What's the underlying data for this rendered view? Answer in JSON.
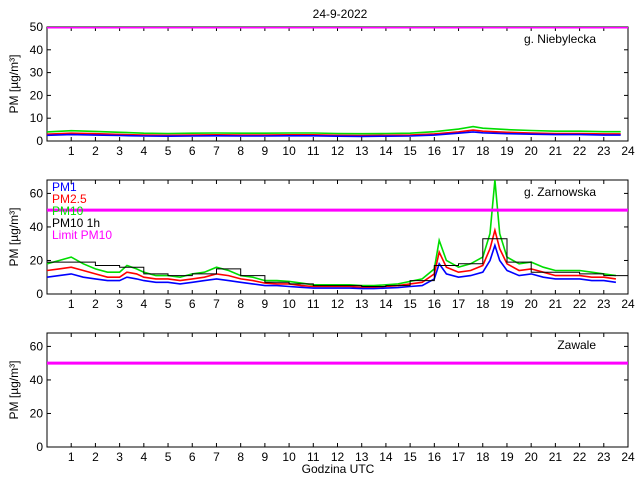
{
  "title": "24-9-2022",
  "xlabel": "Godzina UTC",
  "ylabel": "PM [µg/m³]",
  "colors": {
    "pm1": "#0000ff",
    "pm25": "#ff0000",
    "pm10": "#00dd00",
    "pm10_1h": "#000000",
    "limit": "#ff00ff"
  },
  "legend": [
    {
      "key": "pm1",
      "label": "PM1"
    },
    {
      "key": "pm25",
      "label": "PM2.5"
    },
    {
      "key": "pm10",
      "label": "PM10"
    },
    {
      "key": "pm10_1h",
      "label": "PM10 1h"
    },
    {
      "key": "limit",
      "label": "Limit PM10"
    }
  ],
  "chart_data": [
    {
      "type": "line",
      "station": "g. Niebylecka",
      "xlim": [
        0,
        24
      ],
      "ylim": [
        0,
        50
      ],
      "yticks": [
        0,
        10,
        20,
        30,
        40,
        50
      ],
      "xticks": [
        1,
        2,
        3,
        4,
        5,
        6,
        7,
        8,
        9,
        10,
        11,
        12,
        13,
        14,
        15,
        16,
        17,
        18,
        19,
        20,
        21,
        22,
        23,
        24
      ],
      "limit": 50,
      "series": [
        {
          "key": "pm1",
          "x": [
            0,
            1,
            2,
            3,
            4,
            5,
            6,
            7,
            8,
            9,
            10,
            11,
            12,
            13,
            14,
            15,
            16,
            17,
            17.6,
            18,
            19,
            20,
            21,
            22,
            23,
            23.7
          ],
          "y": [
            2.5,
            2.8,
            2.6,
            2.4,
            2.2,
            2.1,
            2.2,
            2.3,
            2.2,
            2.2,
            2.3,
            2.3,
            2.1,
            2.0,
            2.1,
            2.2,
            2.6,
            3.4,
            4.0,
            3.6,
            3.2,
            3.0,
            2.8,
            2.8,
            2.6,
            2.6
          ]
        },
        {
          "key": "pm25",
          "x": [
            0,
            1,
            2,
            3,
            4,
            5,
            6,
            7,
            8,
            9,
            10,
            11,
            12,
            13,
            14,
            15,
            16,
            17,
            17.6,
            18,
            19,
            20,
            21,
            22,
            23,
            23.7
          ],
          "y": [
            3.0,
            3.4,
            3.2,
            2.9,
            2.6,
            2.5,
            2.6,
            2.7,
            2.6,
            2.6,
            2.7,
            2.7,
            2.5,
            2.4,
            2.5,
            2.6,
            3.1,
            4.0,
            4.8,
            4.3,
            3.8,
            3.5,
            3.3,
            3.3,
            3.1,
            3.1
          ]
        },
        {
          "key": "pm10",
          "x": [
            0,
            1,
            2,
            3,
            4,
            5,
            6,
            7,
            8,
            9,
            10,
            11,
            12,
            13,
            14,
            15,
            16,
            17,
            17.6,
            18,
            19,
            20,
            21,
            22,
            23,
            23.7
          ],
          "y": [
            4.0,
            4.5,
            4.2,
            3.8,
            3.4,
            3.3,
            3.4,
            3.5,
            3.4,
            3.4,
            3.5,
            3.5,
            3.3,
            3.2,
            3.3,
            3.4,
            4.1,
            5.2,
            6.3,
            5.6,
            5.0,
            4.6,
            4.3,
            4.3,
            4.1,
            4.1
          ]
        }
      ],
      "hourly_pm10": []
    },
    {
      "type": "line",
      "station": "g. Zarnowska",
      "xlim": [
        0,
        24
      ],
      "ylim": [
        0,
        68
      ],
      "yticks": [
        0,
        20,
        40,
        60
      ],
      "xticks": [
        1,
        2,
        3,
        4,
        5,
        6,
        7,
        8,
        9,
        10,
        11,
        12,
        13,
        14,
        15,
        16,
        17,
        18,
        19,
        20,
        21,
        22,
        23,
        24
      ],
      "limit": 50,
      "series": [
        {
          "key": "pm1",
          "x": [
            0,
            0.5,
            1,
            1.5,
            2,
            2.5,
            3,
            3.3,
            3.7,
            4,
            4.5,
            5,
            5.5,
            6,
            6.5,
            7,
            7.5,
            8,
            8.5,
            9,
            9.5,
            10,
            10.5,
            11,
            11.5,
            12,
            12.5,
            13,
            13.5,
            14,
            14.5,
            15,
            15.5,
            16,
            16.2,
            16.5,
            17,
            17.5,
            18,
            18.3,
            18.5,
            18.7,
            19,
            19.5,
            20,
            20.5,
            21,
            21.5,
            22,
            22.5,
            23,
            23.5
          ],
          "y": [
            10,
            11,
            12,
            10,
            9,
            8,
            8,
            10,
            9,
            8,
            7,
            7,
            6,
            7,
            8,
            9,
            8,
            7,
            6,
            5,
            5,
            4.5,
            4,
            3.5,
            3.5,
            3.5,
            3.5,
            3.2,
            3.2,
            3.5,
            3.8,
            4.5,
            5,
            9,
            18,
            12,
            10,
            11,
            13,
            20,
            29,
            20,
            14,
            11,
            12,
            10,
            9,
            9,
            9,
            8,
            8,
            7
          ]
        },
        {
          "key": "pm25",
          "x": [
            0,
            0.5,
            1,
            1.5,
            2,
            2.5,
            3,
            3.3,
            3.7,
            4,
            4.5,
            5,
            5.5,
            6,
            6.5,
            7,
            7.5,
            8,
            8.5,
            9,
            9.5,
            10,
            10.5,
            11,
            11.5,
            12,
            12.5,
            13,
            13.5,
            14,
            14.5,
            15,
            15.5,
            16,
            16.2,
            16.5,
            17,
            17.5,
            18,
            18.3,
            18.5,
            18.7,
            19,
            19.5,
            20,
            20.5,
            21,
            21.5,
            22,
            22.5,
            23,
            23.5
          ],
          "y": [
            14,
            15,
            16,
            14,
            12,
            10,
            10,
            13,
            12,
            10,
            9,
            9,
            8,
            9,
            10,
            12,
            11,
            9,
            8,
            6.5,
            6,
            6,
            5,
            4.5,
            4.5,
            4.5,
            4.5,
            4,
            4,
            4.5,
            5,
            6,
            7,
            12,
            25,
            16,
            13,
            14,
            17,
            27,
            38,
            27,
            18,
            14,
            15,
            13,
            11,
            11,
            11,
            10,
            10,
            9
          ]
        },
        {
          "key": "pm10",
          "x": [
            0,
            0.5,
            1,
            1.5,
            2,
            2.5,
            3,
            3.3,
            3.7,
            4,
            4.5,
            5,
            5.5,
            6,
            6.5,
            7,
            7.5,
            8,
            8.5,
            9,
            9.5,
            10,
            10.5,
            11,
            11.5,
            12,
            12.5,
            13,
            13.5,
            14,
            14.5,
            15,
            15.5,
            16,
            16.2,
            16.5,
            17,
            17.5,
            18,
            18.3,
            18.5,
            18.6,
            18.7,
            19,
            19.5,
            20,
            20.5,
            21,
            21.5,
            22,
            22.5,
            23,
            23.5
          ],
          "y": [
            18,
            20,
            22,
            18,
            15,
            13,
            13,
            17,
            15,
            13,
            11,
            11,
            10,
            12,
            13,
            16,
            14,
            11,
            10,
            8,
            8,
            7.5,
            6.5,
            5.5,
            5.5,
            5.5,
            5.5,
            5,
            5,
            5.5,
            6,
            7.5,
            9,
            15,
            32,
            20,
            16,
            18,
            22,
            36,
            68,
            52,
            36,
            22,
            18,
            19,
            16,
            14,
            14,
            14,
            13,
            12,
            11
          ]
        }
      ],
      "hourly_pm10": [
        19,
        19,
        17,
        16,
        12,
        11,
        12,
        15,
        11,
        7,
        6,
        5,
        5,
        4.5,
        5,
        8,
        17,
        18,
        33,
        19,
        13,
        13,
        12,
        11
      ]
    },
    {
      "type": "line",
      "station": "Zawale",
      "xlim": [
        0,
        24
      ],
      "ylim": [
        0,
        68
      ],
      "yticks": [
        0,
        20,
        40,
        60
      ],
      "xticks": [
        1,
        2,
        3,
        4,
        5,
        6,
        7,
        8,
        9,
        10,
        11,
        12,
        13,
        14,
        15,
        16,
        17,
        18,
        19,
        20,
        21,
        22,
        23,
        24
      ],
      "limit": 50,
      "series": [],
      "hourly_pm10": []
    }
  ]
}
